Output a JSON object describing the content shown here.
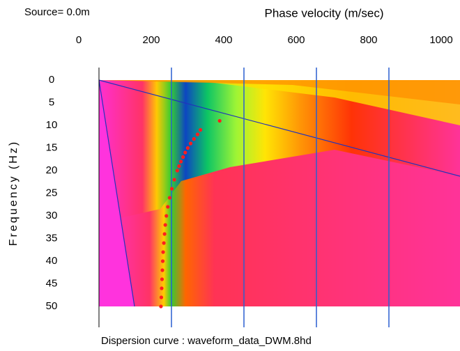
{
  "chart_data": {
    "type": "scatter",
    "source_label": "Source= 0.0m",
    "title": "Phase velocity (m/sec)",
    "y_label": "Frequency (Hz)",
    "caption": "Dispersion curve : waveform_data_DWM.8hd",
    "xlim": [
      0,
      1000
    ],
    "xticks": [
      0,
      200,
      400,
      600,
      800,
      1000
    ],
    "ylim": [
      0,
      50
    ],
    "yticks": [
      0,
      5,
      10,
      15,
      20,
      25,
      30,
      35,
      40,
      45,
      50
    ],
    "y_inverted": true,
    "grid": true,
    "series": [
      {
        "color": "#ff1e1e",
        "x": [
          333,
          280,
          272,
          262,
          253,
          245,
          238,
          232,
          226,
          221,
          216,
          208,
          201,
          195,
          190,
          186,
          183,
          181,
          179,
          177,
          176,
          175,
          174,
          173,
          172,
          171
        ],
        "values": [
          9,
          11,
          12,
          13,
          14,
          15,
          16,
          17,
          18,
          19,
          20,
          22,
          24,
          26,
          28,
          30,
          32,
          34,
          36,
          38,
          40,
          42,
          44,
          46,
          48,
          50
        ]
      }
    ]
  }
}
